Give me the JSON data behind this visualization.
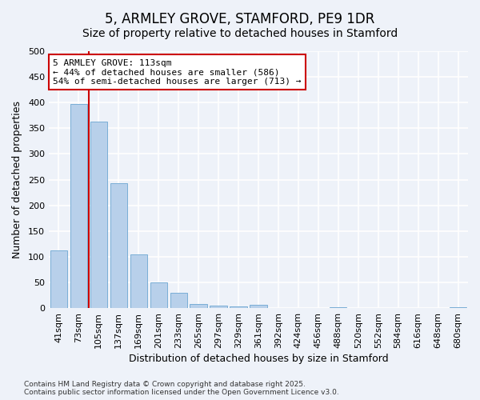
{
  "title": "5, ARMLEY GROVE, STAMFORD, PE9 1DR",
  "subtitle": "Size of property relative to detached houses in Stamford",
  "xlabel": "Distribution of detached houses by size in Stamford",
  "ylabel": "Number of detached properties",
  "categories": [
    "41sqm",
    "73sqm",
    "105sqm",
    "137sqm",
    "169sqm",
    "201sqm",
    "233sqm",
    "265sqm",
    "297sqm",
    "329sqm",
    "361sqm",
    "392sqm",
    "424sqm",
    "456sqm",
    "488sqm",
    "520sqm",
    "552sqm",
    "584sqm",
    "616sqm",
    "648sqm",
    "680sqm"
  ],
  "values": [
    113,
    397,
    363,
    243,
    104,
    50,
    30,
    8,
    5,
    3,
    6,
    0,
    0,
    0,
    1,
    0,
    0,
    0,
    0,
    0,
    1
  ],
  "bar_color": "#b8d0ea",
  "bar_edge_color": "#7aaed6",
  "background_color": "#eef2f9",
  "grid_color": "#ffffff",
  "red_line_color": "#cc0000",
  "red_line_x": 1.5,
  "annotation_text": "5 ARMLEY GROVE: 113sqm\n← 44% of detached houses are smaller (586)\n54% of semi-detached houses are larger (713) →",
  "annotation_box_facecolor": "#ffffff",
  "annotation_box_edgecolor": "#cc0000",
  "ylim": [
    0,
    500
  ],
  "yticks": [
    0,
    50,
    100,
    150,
    200,
    250,
    300,
    350,
    400,
    450,
    500
  ],
  "footer_text": "Contains HM Land Registry data © Crown copyright and database right 2025.\nContains public sector information licensed under the Open Government Licence v3.0.",
  "title_fontsize": 12,
  "subtitle_fontsize": 10,
  "axis_label_fontsize": 9,
  "tick_fontsize": 8,
  "annotation_fontsize": 8,
  "footer_fontsize": 6.5
}
